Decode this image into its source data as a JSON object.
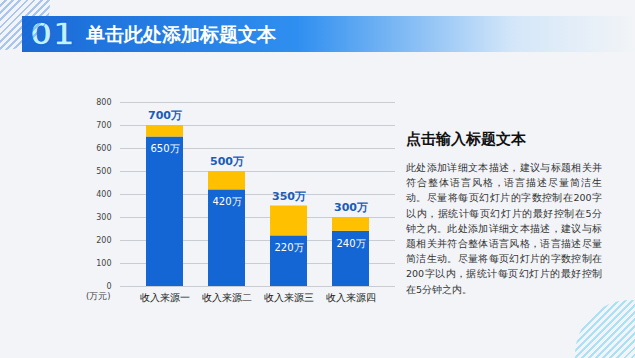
{
  "header": {
    "number": "01",
    "title": "单击此处添加标题文本"
  },
  "chart_data": {
    "type": "bar",
    "stacked": true,
    "categories": [
      "收入来源一",
      "收入来源二",
      "收入来源三",
      "收入来源四"
    ],
    "series": [
      {
        "color": "#1466d4",
        "values": [
          650,
          420,
          220,
          240
        ],
        "value_labels": [
          "650万",
          "420万",
          "220万",
          "240万"
        ],
        "data_labels": true
      },
      {
        "color": "#ffc000",
        "values": [
          50,
          80,
          130,
          60
        ],
        "data_labels": false
      }
    ],
    "totals": [
      700,
      500,
      350,
      300
    ],
    "total_labels": [
      "700万",
      "500万",
      "350万",
      "300万"
    ],
    "ylim": [
      0,
      800
    ],
    "yticks": [
      0,
      100,
      200,
      300,
      400,
      500,
      600,
      700,
      800
    ],
    "ylabel": "(万元)",
    "grid": true
  },
  "text_panel": {
    "title": "点击输入标题文本",
    "body": "此处添加详细文本描述，建议与标题相关并符合整体语言风格，语言描述尽量简洁生动。尽量将每页幻灯片的字数控制在200字以内，据统计每页幻灯片的最好控制在5分钟之内。此处添加详细文本描述，建议与标题相关并符合整体语言风格，语言描述尽量简洁生动。尽量将每页幻灯片的字数控制在200字以内，据统计每页幻灯片的最好控制在5分钟之内。"
  }
}
